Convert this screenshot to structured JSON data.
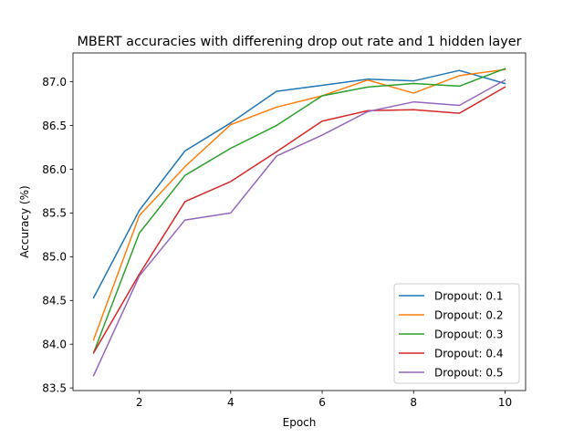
{
  "chart_data": {
    "type": "line",
    "title": "MBERT accuracies with differening drop out rate and 1 hidden layer",
    "xlabel": "Epoch",
    "ylabel": "Accuracy (%)",
    "x": [
      1,
      2,
      3,
      4,
      5,
      6,
      7,
      8,
      9,
      10
    ],
    "xlim": [
      0.55,
      10.45
    ],
    "ylim": [
      83.47,
      87.33
    ],
    "xticks": [
      2,
      4,
      6,
      8,
      10
    ],
    "yticks": [
      83.5,
      84.0,
      84.5,
      85.0,
      85.5,
      86.0,
      86.5,
      87.0
    ],
    "xtick_labels": [
      "2",
      "4",
      "6",
      "8",
      "10"
    ],
    "ytick_labels": [
      "83.5",
      "84.0",
      "84.5",
      "85.0",
      "85.5",
      "86.0",
      "86.5",
      "87.0"
    ],
    "grid": false,
    "legend_position": "lower right",
    "series": [
      {
        "name": "Dropout: 0.1",
        "color": "#1f77b4",
        "values": [
          84.53,
          85.53,
          86.21,
          86.53,
          86.89,
          86.96,
          87.03,
          87.01,
          87.13,
          86.98
        ]
      },
      {
        "name": "Dropout: 0.2",
        "color": "#ff7f0e",
        "values": [
          84.05,
          85.47,
          86.03,
          86.51,
          86.71,
          86.84,
          87.02,
          86.87,
          87.07,
          87.14
        ]
      },
      {
        "name": "Dropout: 0.3",
        "color": "#2ca02c",
        "values": [
          83.9,
          85.27,
          85.93,
          86.24,
          86.5,
          86.84,
          86.94,
          86.98,
          86.95,
          87.15
        ]
      },
      {
        "name": "Dropout: 0.4",
        "color": "#d62728",
        "values": [
          83.9,
          84.8,
          85.63,
          85.86,
          86.2,
          86.55,
          86.67,
          86.68,
          86.64,
          86.94
        ]
      },
      {
        "name": "Dropout: 0.5",
        "color": "#9467bd",
        "values": [
          83.64,
          84.78,
          85.42,
          85.5,
          86.15,
          86.39,
          86.66,
          86.77,
          86.73,
          87.02
        ]
      }
    ]
  }
}
